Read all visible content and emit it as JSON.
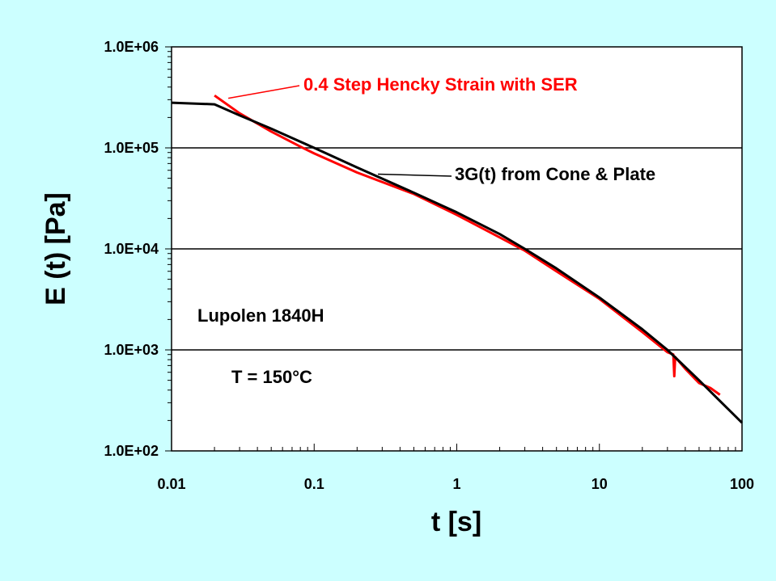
{
  "colors": {
    "background": "#ccffff",
    "plot_area": "#ffffff",
    "series_ser": "#ff0000",
    "series_cp": "#000000"
  },
  "chart_data": {
    "type": "line",
    "title": "",
    "xlabel": "t [s]",
    "ylabel": "E (t) [Pa]",
    "xscale": "log",
    "yscale": "log",
    "xlim": [
      0.01,
      100
    ],
    "ylim": [
      100,
      1000000
    ],
    "x_tick_values": [
      0.01,
      0.1,
      1,
      10,
      100
    ],
    "x_tick_labels": [
      "0.01",
      "0.1",
      "1",
      "10",
      "100"
    ],
    "y_tick_values": [
      100,
      1000,
      10000,
      100000,
      1000000
    ],
    "y_tick_labels": [
      "1.0E+02",
      "1.0E+03",
      "1.0E+04",
      "1.0E+05",
      "1.0E+06"
    ],
    "grid": "horizontal major gridlines",
    "series": [
      {
        "name": "0.4 Step Hencky Strain with SER",
        "color": "#ff0000",
        "x": [
          0.02,
          0.03,
          0.05,
          0.08,
          0.1,
          0.2,
          0.5,
          1,
          2,
          3,
          5,
          10,
          20,
          30,
          33,
          33.5,
          34,
          40,
          50,
          60,
          70
        ],
        "y": [
          330000,
          220000,
          145000,
          103000,
          88000,
          57000,
          35000,
          21700,
          13000,
          9600,
          6000,
          3200,
          1500,
          950,
          900,
          550,
          850,
          650,
          470,
          420,
          360
        ]
      },
      {
        "name": "3G(t) from Cone & Plate",
        "color": "#000000",
        "x": [
          0.01,
          0.02,
          0.03,
          0.05,
          0.1,
          0.2,
          0.5,
          1,
          2,
          3,
          5,
          10,
          20,
          30,
          50,
          100
        ],
        "y": [
          280000,
          270000,
          210000,
          155000,
          100000,
          64000,
          36000,
          23000,
          14000,
          10000,
          6400,
          3300,
          1600,
          1000,
          500,
          190
        ]
      }
    ],
    "annotations": [
      {
        "text": "0.4 Step Hencky Strain with SER",
        "color": "#ff0000",
        "points_to": [
          0.025,
          310000
        ]
      },
      {
        "text": "3G(t) from Cone & Plate",
        "color": "#000000",
        "points_to": [
          0.28,
          55000
        ]
      },
      {
        "text": "Lupolen 1840H",
        "color": "#000000"
      },
      {
        "text": "T = 150°C",
        "color": "#000000"
      }
    ]
  }
}
